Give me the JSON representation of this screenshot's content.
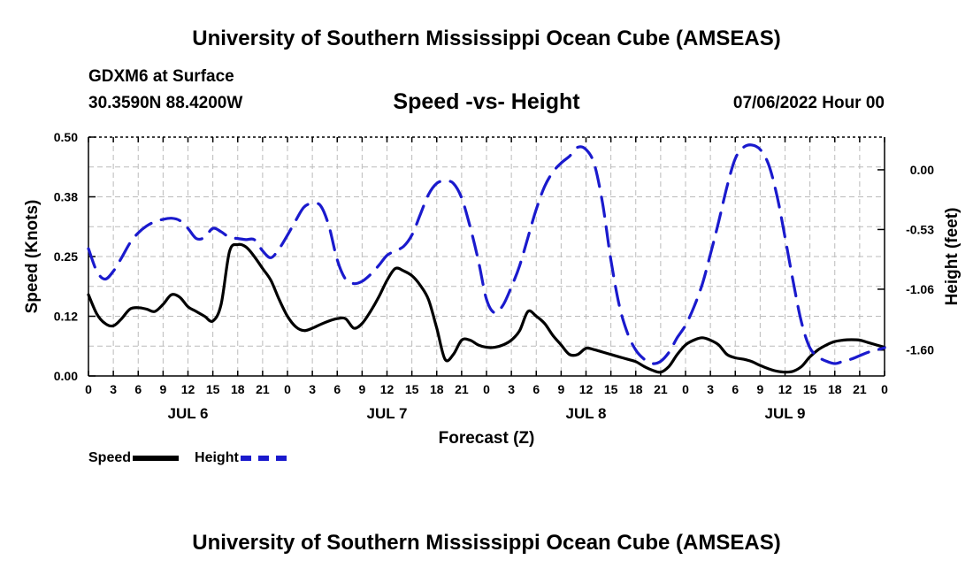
{
  "title_top": "University of Southern Mississippi Ocean Cube (AMSEAS)",
  "title_bottom": "University of Southern Mississippi Ocean Cube (AMSEAS)",
  "station": "GDXM6 at Surface",
  "coords": "30.3590N  88.4200W",
  "chart_title": "Speed -vs- Height",
  "datetime": "07/06/2022 Hour 00",
  "legend": {
    "speed_label": "Speed",
    "height_label": "Height"
  },
  "colors": {
    "speed": "#000000",
    "height": "#1a1acd",
    "grid": "#bbbbbb"
  },
  "chart_data": {
    "type": "line",
    "title": "Speed -vs- Height",
    "xlabel": "Forecast (Z)",
    "ylabel_left": "Speed (Knots)",
    "ylabel_right": "Height (feet)",
    "x_unit": "hours from 07/06/2022 00Z",
    "xlim": [
      0,
      96
    ],
    "ylim_left": [
      0,
      0.5
    ],
    "ylim_right": [
      -1.83,
      0.29
    ],
    "left_ticks": [
      "0.00",
      "0.12",
      "0.25",
      "0.38",
      "0.50"
    ],
    "left_tick_values": [
      0,
      0.125,
      0.25,
      0.375,
      0.5
    ],
    "right_ticks": [
      "-1.60",
      "-1.06",
      "-0.53",
      "0.00"
    ],
    "right_tick_values": [
      -1.6,
      -1.06,
      -0.53,
      0.0
    ],
    "x_tick_labels": [
      "0",
      "3",
      "6",
      "9",
      "12",
      "15",
      "18",
      "21",
      "0",
      "3",
      "6",
      "9",
      "12",
      "15",
      "18",
      "21",
      "0",
      "3",
      "6",
      "9",
      "12",
      "15",
      "18",
      "21",
      "0",
      "3",
      "6",
      "9",
      "12",
      "15",
      "18",
      "21",
      "0"
    ],
    "day_labels": [
      "JUL 6",
      "JUL 7",
      "JUL 8",
      "JUL 9"
    ],
    "grid": true,
    "series": [
      {
        "name": "Speed",
        "style": "solid",
        "axis": "left",
        "x": [
          0,
          1,
          2,
          3,
          4,
          5,
          6,
          7,
          8,
          9,
          10,
          11,
          12,
          13,
          14,
          15,
          16,
          17,
          18,
          19,
          20,
          21,
          22,
          23,
          24,
          25,
          26,
          27,
          28,
          29,
          30,
          31,
          32,
          33,
          34,
          35,
          36,
          37,
          38,
          39,
          40,
          41,
          42,
          43,
          44,
          45,
          46,
          47,
          48,
          49,
          50,
          51,
          52,
          53,
          54,
          55,
          56,
          57,
          58,
          59,
          60,
          61,
          62,
          63,
          64,
          65,
          66,
          67,
          68,
          69,
          70,
          71,
          72,
          73,
          74,
          75,
          76,
          77,
          78,
          79,
          80,
          81,
          82,
          83,
          84,
          85,
          86,
          87,
          88,
          89,
          90,
          91,
          92,
          93,
          94,
          95,
          96
        ],
        "y": [
          0.17,
          0.13,
          0.11,
          0.105,
          0.12,
          0.14,
          0.143,
          0.14,
          0.135,
          0.15,
          0.17,
          0.165,
          0.145,
          0.135,
          0.125,
          0.115,
          0.15,
          0.26,
          0.275,
          0.27,
          0.25,
          0.225,
          0.2,
          0.16,
          0.125,
          0.103,
          0.095,
          0.1,
          0.108,
          0.115,
          0.12,
          0.12,
          0.1,
          0.11,
          0.135,
          0.165,
          0.2,
          0.225,
          0.22,
          0.21,
          0.19,
          0.16,
          0.1,
          0.035,
          0.045,
          0.075,
          0.075,
          0.065,
          0.06,
          0.06,
          0.065,
          0.075,
          0.095,
          0.135,
          0.125,
          0.11,
          0.085,
          0.065,
          0.045,
          0.045,
          0.058,
          0.055,
          0.05,
          0.045,
          0.04,
          0.035,
          0.03,
          0.02,
          0.012,
          0.008,
          0.02,
          0.045,
          0.065,
          0.075,
          0.08,
          0.075,
          0.065,
          0.045,
          0.038,
          0.035,
          0.03,
          0.022,
          0.015,
          0.01,
          0.008,
          0.01,
          0.02,
          0.04,
          0.055,
          0.065,
          0.072,
          0.075,
          0.076,
          0.075,
          0.07,
          0.065,
          0.06
        ]
      },
      {
        "name": "Height",
        "style": "dashed",
        "axis": "right",
        "x": [
          0,
          1,
          2,
          3,
          4,
          5,
          6,
          7,
          8,
          9,
          10,
          11,
          12,
          13,
          14,
          15,
          16,
          17,
          18,
          19,
          20,
          21,
          22,
          23,
          24,
          25,
          26,
          27,
          28,
          29,
          30,
          31,
          32,
          33,
          34,
          35,
          36,
          37,
          38,
          39,
          40,
          41,
          42,
          43,
          44,
          45,
          46,
          47,
          48,
          49,
          50,
          51,
          52,
          53,
          54,
          55,
          56,
          57,
          58,
          59,
          60,
          61,
          62,
          63,
          64,
          65,
          66,
          67,
          68,
          69,
          70,
          71,
          72,
          73,
          74,
          75,
          76,
          77,
          78,
          79,
          80,
          81,
          82,
          83,
          84,
          85,
          86,
          87,
          88,
          89,
          90,
          91,
          92,
          93,
          94,
          95,
          96
        ],
        "y": [
          -0.7,
          -0.9,
          -0.97,
          -0.9,
          -0.78,
          -0.65,
          -0.56,
          -0.5,
          -0.46,
          -0.44,
          -0.43,
          -0.45,
          -0.52,
          -0.61,
          -0.6,
          -0.52,
          -0.55,
          -0.6,
          -0.61,
          -0.62,
          -0.62,
          -0.72,
          -0.78,
          -0.7,
          -0.58,
          -0.45,
          -0.33,
          -0.3,
          -0.32,
          -0.5,
          -0.8,
          -0.97,
          -1.01,
          -0.99,
          -0.93,
          -0.85,
          -0.76,
          -0.72,
          -0.68,
          -0.58,
          -0.4,
          -0.22,
          -0.12,
          -0.1,
          -0.12,
          -0.25,
          -0.5,
          -0.8,
          -1.15,
          -1.27,
          -1.2,
          -1.04,
          -0.85,
          -0.6,
          -0.35,
          -0.15,
          -0.02,
          0.06,
          0.12,
          0.2,
          0.18,
          0.05,
          -0.3,
          -0.8,
          -1.2,
          -1.45,
          -1.6,
          -1.68,
          -1.72,
          -1.7,
          -1.62,
          -1.49,
          -1.38,
          -1.22,
          -1.02,
          -0.75,
          -0.46,
          -0.15,
          0.1,
          0.2,
          0.22,
          0.18,
          0.05,
          -0.22,
          -0.6,
          -1.0,
          -1.36,
          -1.58,
          -1.66,
          -1.7,
          -1.72,
          -1.7,
          -1.68,
          -1.65,
          -1.62,
          -1.6,
          -1.58
        ]
      }
    ]
  }
}
